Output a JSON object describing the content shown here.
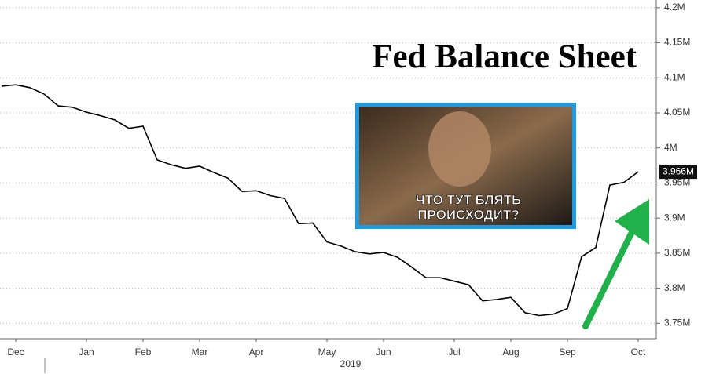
{
  "chart_data": {
    "type": "line",
    "title": "Fed Balance Sheet",
    "categories": [
      null,
      "Dec",
      null,
      null,
      null,
      null,
      "Jan",
      null,
      null,
      null,
      "Feb",
      null,
      null,
      null,
      "Mar",
      null,
      null,
      null,
      "Apr",
      null,
      null,
      null,
      null,
      "May",
      null,
      null,
      null,
      "Jun",
      null,
      null,
      null,
      null,
      "Jul",
      null,
      null,
      null,
      "Aug",
      null,
      null,
      null,
      "Sep",
      null,
      null,
      null,
      null,
      "Oct"
    ],
    "x_sublabel": "2019",
    "values": [
      4.088,
      4.09,
      4.086,
      4.077,
      4.06,
      4.058,
      4.051,
      4.046,
      4.04,
      4.028,
      4.031,
      3.983,
      3.976,
      3.971,
      3.974,
      3.965,
      3.957,
      3.938,
      3.939,
      3.932,
      3.928,
      3.892,
      3.893,
      3.866,
      3.86,
      3.852,
      3.849,
      3.851,
      3.844,
      3.83,
      3.815,
      3.815,
      3.81,
      3.805,
      3.782,
      3.784,
      3.787,
      3.765,
      3.761,
      3.763,
      3.771,
      3.845,
      3.858,
      3.947,
      3.951,
      3.966
    ],
    "value_labels": [
      null,
      null,
      null,
      null,
      null,
      null,
      null,
      null,
      null,
      null,
      null,
      null,
      null,
      null,
      null,
      null,
      null,
      null,
      null,
      null,
      null,
      null,
      null,
      null,
      null,
      null,
      null,
      null,
      null,
      null,
      null,
      null,
      null,
      null,
      null,
      null,
      null,
      null,
      null,
      null,
      null,
      null,
      null,
      null,
      null,
      "3.966M"
    ],
    "color": "#000000",
    "ylim": [
      3.728,
      4.211
    ],
    "yticks": [
      {
        "value": 3.75,
        "label": "3.75M"
      },
      {
        "value": 3.8,
        "label": "3.8M"
      },
      {
        "value": 3.85,
        "label": "3.85M"
      },
      {
        "value": 3.9,
        "label": "3.9M"
      },
      {
        "value": 3.95,
        "label": "3.95M"
      },
      {
        "value": 4,
        "label": "4M"
      },
      {
        "value": 4.05,
        "label": "4.05M"
      },
      {
        "value": 4.1,
        "label": "4.1M"
      },
      {
        "value": 4.15,
        "label": "4.15M"
      },
      {
        "value": 4.2,
        "label": "4.2M"
      }
    ],
    "grid": true
  },
  "image": {
    "caption": [
      "ЧТО ТУТ БЛЯТЬ",
      "ПРОИСХОДИТ?"
    ]
  }
}
